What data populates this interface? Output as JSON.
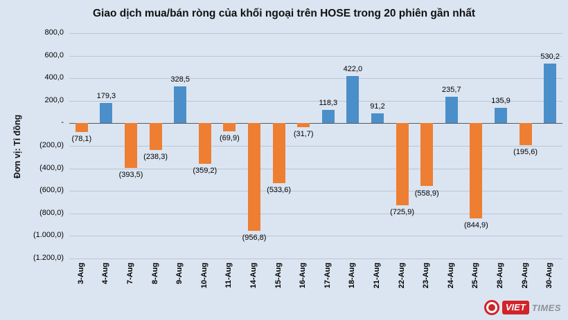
{
  "title": "Giao dịch mua/bán ròng của khối ngoại trên HOSE trong 20 phiên gần nhất",
  "y_axis_unit_label": "Đơn vị: Tỉ đồng",
  "logo": {
    "part1": "VIET",
    "part2": "TIMES"
  },
  "colors": {
    "background": "#dbe5f1",
    "positive_bar": "#4a8fc9",
    "negative_bar": "#ee7e32",
    "gridline": "#b9c4d6",
    "zero_line": "#595959",
    "title_text": "#111111",
    "label_text": "#000000",
    "logo_red": "#d1232a",
    "logo_grey": "#8d9299"
  },
  "chart_data": {
    "type": "bar",
    "title": "Giao dịch mua/bán ròng của khối ngoại trên HOSE trong 20 phiên gần nhất",
    "ylabel": "Đơn vị: Tỉ đồng",
    "xlabel": "",
    "unit": "Tỉ đồng",
    "grid": true,
    "legend": "none",
    "ylim": [
      -1200,
      800
    ],
    "categories": [
      "3-Aug",
      "4-Aug",
      "7-Aug",
      "8-Aug",
      "9-Aug",
      "10-Aug",
      "11-Aug",
      "14-Aug",
      "15-Aug",
      "16-Aug",
      "17-Aug",
      "18-Aug",
      "21-Aug",
      "22-Aug",
      "23-Aug",
      "24-Aug",
      "25-Aug",
      "28-Aug",
      "29-Aug",
      "30-Aug"
    ],
    "values": [
      -78.1,
      179.3,
      -393.5,
      -238.3,
      328.5,
      -359.2,
      -69.9,
      -956.8,
      -533.6,
      -31.7,
      118.3,
      422.0,
      91.2,
      -725.9,
      -558.9,
      235.7,
      -844.9,
      135.9,
      -195.6,
      530.2
    ],
    "value_labels": [
      "(78,1)",
      "179,3",
      "(393,5)",
      "(238,3)",
      "328,5",
      "(359,2)",
      "(69,9)",
      "(956,8)",
      "(533,6)",
      "(31,7)",
      "118,3",
      "422,0",
      "91,2",
      "(725,9)",
      "(558,9)",
      "235,7",
      "(844,9)",
      "135,9",
      "(195,6)",
      "530,2"
    ],
    "ytick_values": [
      800,
      600,
      400,
      200,
      0,
      -200,
      -400,
      -600,
      -800,
      -1000,
      -1200
    ],
    "ytick_labels": [
      "800,0",
      "600,0",
      "400,0",
      "200,0",
      "-",
      "(200,0)",
      "(400,0)",
      "(600,0)",
      "(800,0)",
      "(1.000,0)",
      "(1.200,0)"
    ]
  }
}
